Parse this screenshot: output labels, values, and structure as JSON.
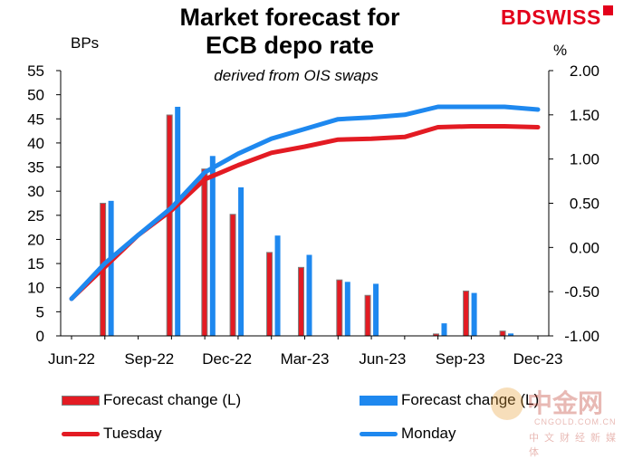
{
  "title_line1": "Market forecast for",
  "title_line2": "ECB depo rate",
  "subtitle": "derived from OIS swaps",
  "left_unit": "BPs",
  "right_unit": "%",
  "brand": {
    "part1": "BD",
    "part2": "SWISS"
  },
  "watermark": {
    "cn": "中金网",
    "en": "CNGOLD.COM.CN",
    "sub": "中文财经新媒体"
  },
  "colors": {
    "red": "#e31b23",
    "blue": "#1e88ef",
    "bar_border": "#808080"
  },
  "chart_data": {
    "type": "bar+line",
    "title": "Market forecast for ECB depo rate",
    "subtitle": "derived from OIS swaps",
    "x_tick_labels": [
      "Jun-22",
      "Sep-22",
      "Dec-22",
      "Mar-23",
      "Jun-23",
      "Sep-23",
      "Dec-23"
    ],
    "left_axis": {
      "label": "BPs",
      "ylim": [
        0,
        55
      ],
      "ticks": [
        "0",
        "5",
        "10",
        "15",
        "20",
        "25",
        "30",
        "35",
        "40",
        "45",
        "50",
        "55"
      ]
    },
    "right_axis": {
      "label": "%",
      "ylim": [
        -1.0,
        2.0
      ],
      "ticks": [
        "-1.00",
        "-0.50",
        "0.00",
        "0.50",
        "1.00",
        "1.50",
        "2.00"
      ]
    },
    "x_index": [
      0,
      1,
      2,
      3,
      4,
      5,
      6,
      7,
      8,
      9,
      10,
      11,
      12,
      13,
      14,
      15,
      16,
      17,
      18
    ],
    "bars": [
      {
        "name": "Forecast change (L)",
        "color": "red",
        "values": [
          27.5,
          45.8,
          34.6,
          25.2,
          17.3,
          14.2,
          11.6,
          8.4,
          0.4,
          9.3,
          1.0
        ]
      },
      {
        "name": "Forecast change (L)",
        "color": "blue",
        "values": [
          28.0,
          47.5,
          37.3,
          30.8,
          20.8,
          16.8,
          11.2,
          10.8,
          2.6,
          8.9,
          0.5
        ]
      }
    ],
    "bar_positions": [
      1,
      2,
      3,
      4,
      5,
      6,
      7,
      8,
      9,
      10,
      11
    ],
    "bar_x": [
      1.05,
      3.05,
      4.1,
      4.95,
      6.05,
      7.0,
      8.15,
      9.0,
      11.05,
      11.95,
      13.05
    ],
    "lines": [
      {
        "name": "Tuesday",
        "color": "red",
        "x": [
          0,
          1,
          2,
          3,
          4,
          5,
          6,
          7,
          8,
          9,
          10,
          11,
          12,
          13,
          14
        ],
        "values": [
          -0.58,
          -0.22,
          0.14,
          0.42,
          0.77,
          0.93,
          1.07,
          1.14,
          1.22,
          1.23,
          1.25,
          1.36,
          1.37,
          1.37,
          1.36
        ]
      },
      {
        "name": "Monday",
        "color": "blue",
        "x": [
          0,
          1,
          2,
          3,
          4,
          5,
          6,
          7,
          8,
          9,
          10,
          11,
          12,
          13,
          14
        ],
        "values": [
          -0.58,
          -0.18,
          0.14,
          0.45,
          0.85,
          1.06,
          1.23,
          1.34,
          1.45,
          1.47,
          1.5,
          1.59,
          1.59,
          1.59,
          1.56
        ]
      }
    ]
  },
  "legend": {
    "bar_red": "Forecast change (L)",
    "bar_blue": "Forecast change (L)",
    "line_red": "Tuesday",
    "line_blue": "Monday"
  }
}
